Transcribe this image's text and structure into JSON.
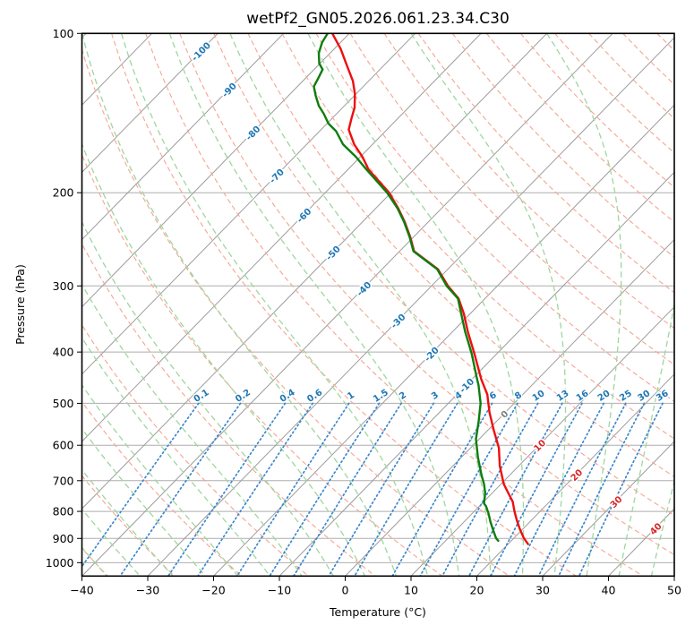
{
  "title": "wetPf2_GN05.2026.061.23.34.C30",
  "chart_data": {
    "type": "line",
    "subtype": "skewT-logP",
    "title": "wetPf2_GN05.2026.061.23.34.C30",
    "xlabel": "Temperature (°C)",
    "ylabel": "Pressure (hPa)",
    "xlim": [
      -40,
      50
    ],
    "pressure_lim": [
      100,
      1060
    ],
    "x_ticks": [
      -40,
      -30,
      -20,
      -10,
      0,
      10,
      20,
      30,
      40,
      50
    ],
    "x_tick_labels": [
      "−40",
      "−30",
      "−20",
      "−10",
      "0",
      "10",
      "20",
      "30",
      "40",
      "50"
    ],
    "pressure_ticks": [
      100,
      200,
      300,
      400,
      500,
      600,
      700,
      800,
      900,
      1000
    ],
    "pressure_tick_labels": [
      "100",
      "200",
      "300",
      "400",
      "500",
      "600",
      "700",
      "800",
      "900",
      "1000"
    ],
    "grid": true,
    "isotherms": {
      "temps_c": [
        -120,
        -110,
        -100,
        -90,
        -80,
        -70,
        -60,
        -50,
        -40,
        -30,
        -20,
        -10,
        0,
        10,
        20,
        30,
        40,
        50
      ],
      "labels": [
        {
          "t": -100,
          "y": 57
        },
        {
          "t": -90,
          "y": 100
        },
        {
          "t": -80,
          "y": 148
        },
        {
          "t": -70,
          "y": 196
        },
        {
          "t": -60,
          "y": 240
        },
        {
          "t": -50,
          "y": 282
        },
        {
          "t": -40,
          "y": 322
        },
        {
          "t": -30,
          "y": 358
        },
        {
          "t": -20,
          "y": 395
        },
        {
          "t": -10,
          "y": 430
        },
        {
          "t": 0,
          "y": 462
        },
        {
          "t": 10,
          "y": 497
        },
        {
          "t": 20,
          "y": 530
        },
        {
          "t": 30,
          "y": 560
        },
        {
          "t": 40,
          "y": 590
        }
      ]
    },
    "dry_adiabats_theta_c": [
      -40,
      -30,
      -20,
      -10,
      0,
      10,
      20,
      30,
      40,
      50,
      60,
      70,
      80,
      90,
      100,
      110,
      120,
      130,
      140,
      150,
      160,
      170,
      180,
      190,
      200
    ],
    "moist_adiabats_thetaw_c": [
      -40,
      -35,
      -30,
      -25,
      -20,
      -15,
      -10,
      -5,
      0,
      5,
      10,
      15,
      20,
      25,
      30,
      35,
      40,
      45
    ],
    "mixing_ratio_lines_gkg": [
      0.1,
      0.2,
      0.4,
      0.6,
      1,
      1.5,
      2,
      3,
      4,
      6,
      8,
      10,
      13,
      16,
      20,
      25,
      30,
      36
    ],
    "mixing_ratio_top_p": 500,
    "series": [
      {
        "name": "temperature",
        "color": "#ee0e0e",
        "points": [
          [
            100,
            -82.6
          ],
          [
            107,
            -79.0
          ],
          [
            115,
            -75.6
          ],
          [
            123,
            -72.4
          ],
          [
            130,
            -70.2
          ],
          [
            138,
            -68.2
          ],
          [
            145,
            -67.0
          ],
          [
            152,
            -65.8
          ],
          [
            162,
            -62.8
          ],
          [
            171,
            -59.7
          ],
          [
            181,
            -56.8
          ],
          [
            200,
            -50.3
          ],
          [
            214,
            -46.6
          ],
          [
            227,
            -43.6
          ],
          [
            243,
            -40.4
          ],
          [
            258,
            -37.8
          ],
          [
            279,
            -31.5
          ],
          [
            300,
            -27.5
          ],
          [
            317,
            -24.0
          ],
          [
            339,
            -20.9
          ],
          [
            366,
            -17.7
          ],
          [
            403,
            -13.4
          ],
          [
            450,
            -8.6
          ],
          [
            481,
            -5.4
          ],
          [
            520,
            -2.4
          ],
          [
            562,
            0.9
          ],
          [
            607,
            4.3
          ],
          [
            656,
            7.1
          ],
          [
            710,
            10.4
          ],
          [
            738,
            12.4
          ],
          [
            767,
            14.4
          ],
          [
            798,
            16.0
          ],
          [
            830,
            17.7
          ],
          [
            863,
            19.5
          ],
          [
            897,
            21.4
          ],
          [
            922,
            23.0
          ]
        ]
      },
      {
        "name": "wet-bulb-dewpoint",
        "color": "#0d7d0d",
        "points": [
          [
            100,
            -83.3
          ],
          [
            104,
            -82.8
          ],
          [
            109,
            -81.7
          ],
          [
            114,
            -80.1
          ],
          [
            117,
            -78.7
          ],
          [
            122,
            -78.0
          ],
          [
            126,
            -77.5
          ],
          [
            131,
            -75.9
          ],
          [
            137,
            -73.9
          ],
          [
            142,
            -71.9
          ],
          [
            148,
            -69.8
          ],
          [
            153,
            -67.5
          ],
          [
            162,
            -64.5
          ],
          [
            171,
            -60.7
          ],
          [
            181,
            -57.1
          ],
          [
            200,
            -50.6
          ],
          [
            214,
            -46.7
          ],
          [
            227,
            -43.7
          ],
          [
            243,
            -40.5
          ],
          [
            258,
            -37.9
          ],
          [
            279,
            -31.6
          ],
          [
            300,
            -27.7
          ],
          [
            317,
            -24.1
          ],
          [
            339,
            -21.3
          ],
          [
            366,
            -18.1
          ],
          [
            403,
            -13.8
          ],
          [
            445,
            -9.7
          ],
          [
            462,
            -8.1
          ],
          [
            500,
            -5.1
          ],
          [
            541,
            -2.7
          ],
          [
            584,
            -0.5
          ],
          [
            632,
            2.5
          ],
          [
            683,
            5.7
          ],
          [
            710,
            7.4
          ],
          [
            738,
            8.9
          ],
          [
            773,
            10.3
          ],
          [
            782,
            11.0
          ],
          [
            806,
            12.4
          ],
          [
            837,
            14.0
          ],
          [
            869,
            15.7
          ],
          [
            899,
            17.3
          ],
          [
            909,
            18.0
          ]
        ]
      }
    ],
    "colors": {
      "isotherm_line": "#9c9c9c",
      "isobar_grid": "#aeaeae",
      "dry_adiabat": "#f5a896",
      "moist_adiabat": "#9fd69f",
      "mixing_ratio": "#3d87cc",
      "label_cold": "#1f77b4",
      "label_zero": "#7f7f7f",
      "label_warm": "#d62728",
      "frame": "#000000"
    }
  }
}
